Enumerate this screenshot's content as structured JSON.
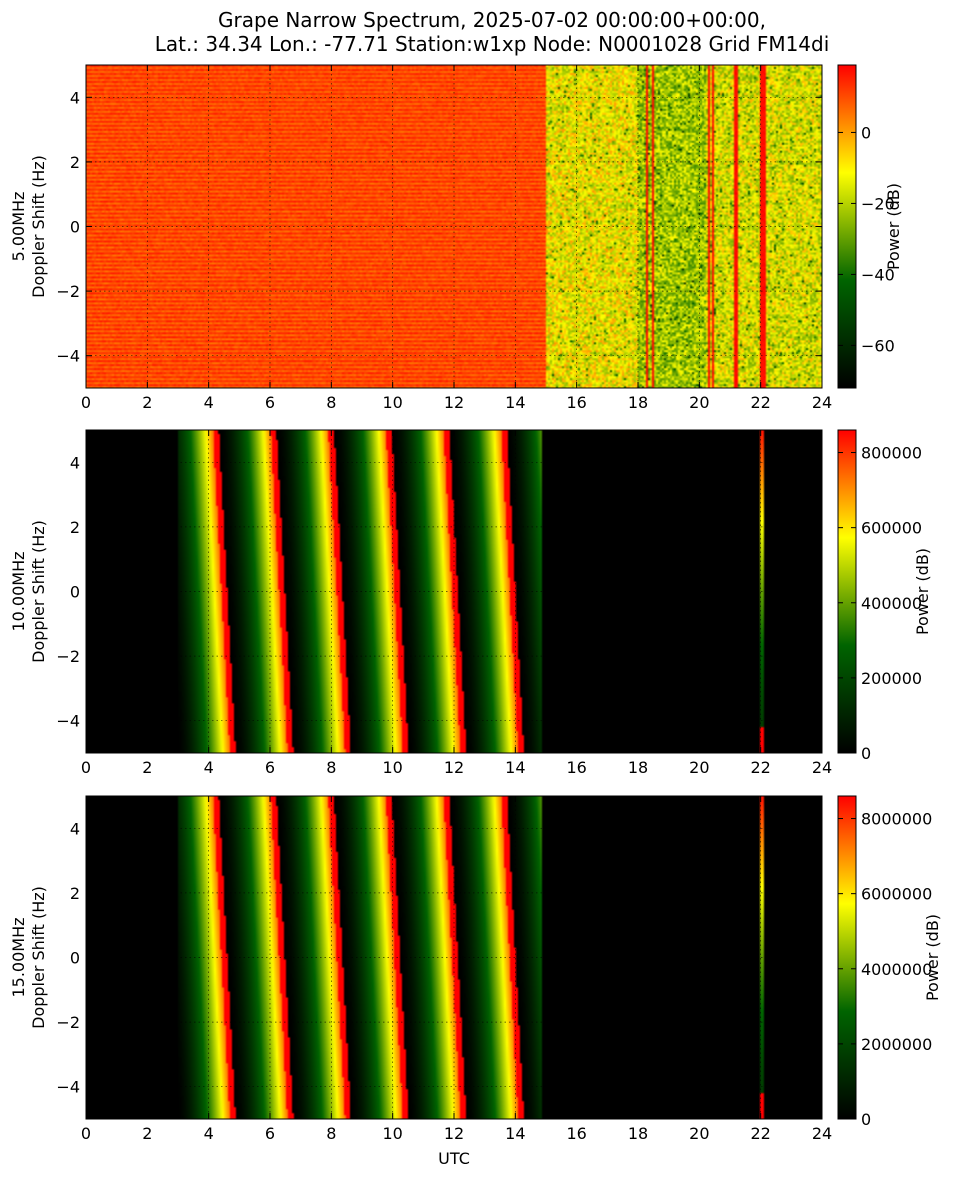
{
  "chart_data": {
    "type": "heatmap",
    "title_lines": [
      "Grape Narrow Spectrum, 2025-07-02 00:00:00+00:00,",
      "Lat.: 34.34 Lon.: -77.71 Station:w1xp Node: N0001028 Grid FM14di"
    ],
    "xlabel": "UTC",
    "colormap": [
      "#000000",
      "#006400",
      "#ffff00",
      "#ff0000"
    ],
    "grid": true,
    "panels": [
      {
        "ylabel_lines": [
          "5.00MHz",
          "Doppler Shift (Hz)"
        ],
        "xlim": [
          0,
          24
        ],
        "ylim": [
          -5,
          5
        ],
        "x_ticks": [
          "0",
          "2",
          "4",
          "6",
          "8",
          "10",
          "12",
          "14",
          "16",
          "18",
          "20",
          "22",
          "24"
        ],
        "y_ticks": [
          "4",
          "2",
          "0",
          "−2",
          "−4"
        ],
        "colorbar": {
          "label": "Power (dB)",
          "range": [
            -72,
            19
          ],
          "ticks": [
            "0",
            "−20",
            "−40",
            "−60"
          ],
          "tick_values": [
            0,
            -20,
            -40,
            -60
          ]
        },
        "pattern": "noise",
        "segments": [
          {
            "x_start": 0,
            "x_end": 15,
            "power_db": 10
          },
          {
            "x_start": 15,
            "x_end": 18,
            "power_db": -12
          },
          {
            "x_start": 18,
            "x_end": 20.2,
            "power_db": -22
          },
          {
            "x_start": 20.2,
            "x_end": 24,
            "power_db": -15
          }
        ],
        "vertical_streaks_utc": [
          18.3,
          18.5,
          20.3,
          20.45,
          21.2,
          22.0,
          22.1
        ]
      },
      {
        "ylabel_lines": [
          "10.00MHz",
          "Doppler Shift (Hz)"
        ],
        "xlim": [
          0,
          24
        ],
        "ylim": [
          -5,
          5
        ],
        "x_ticks": [
          "0",
          "2",
          "4",
          "6",
          "8",
          "10",
          "12",
          "14",
          "16",
          "18",
          "20",
          "22",
          "24"
        ],
        "y_ticks": [
          "4",
          "2",
          "0",
          "−2",
          "−4"
        ],
        "colorbar": {
          "label": "Power (dB)",
          "range": [
            0,
            860000
          ],
          "ticks": [
            "800000",
            "600000",
            "400000",
            "200000",
            "0"
          ],
          "tick_values": [
            800000,
            600000,
            400000,
            200000,
            0
          ]
        },
        "pattern": "sweep",
        "active_utc": [
          3.0,
          14.9
        ],
        "sweep_period_h": 1.88,
        "sweep_tilt_h": 0.55,
        "spike_utc": 22.05
      },
      {
        "ylabel_lines": [
          "15.00MHz",
          "Doppler Shift (Hz)"
        ],
        "xlim": [
          0,
          24
        ],
        "ylim": [
          -5,
          5
        ],
        "x_ticks": [
          "0",
          "2",
          "4",
          "6",
          "8",
          "10",
          "12",
          "14",
          "16",
          "18",
          "20",
          "22",
          "24"
        ],
        "y_ticks": [
          "4",
          "2",
          "0",
          "−2",
          "−4"
        ],
        "colorbar": {
          "label": "Power (dB)",
          "range": [
            0,
            8600000
          ],
          "ticks": [
            "8000000",
            "6000000",
            "4000000",
            "2000000",
            "0"
          ],
          "tick_values": [
            8000000,
            6000000,
            4000000,
            2000000,
            0
          ]
        },
        "pattern": "sweep",
        "active_utc": [
          3.0,
          14.9
        ],
        "sweep_period_h": 1.88,
        "sweep_tilt_h": 0.55,
        "spike_utc": 22.05
      }
    ]
  }
}
